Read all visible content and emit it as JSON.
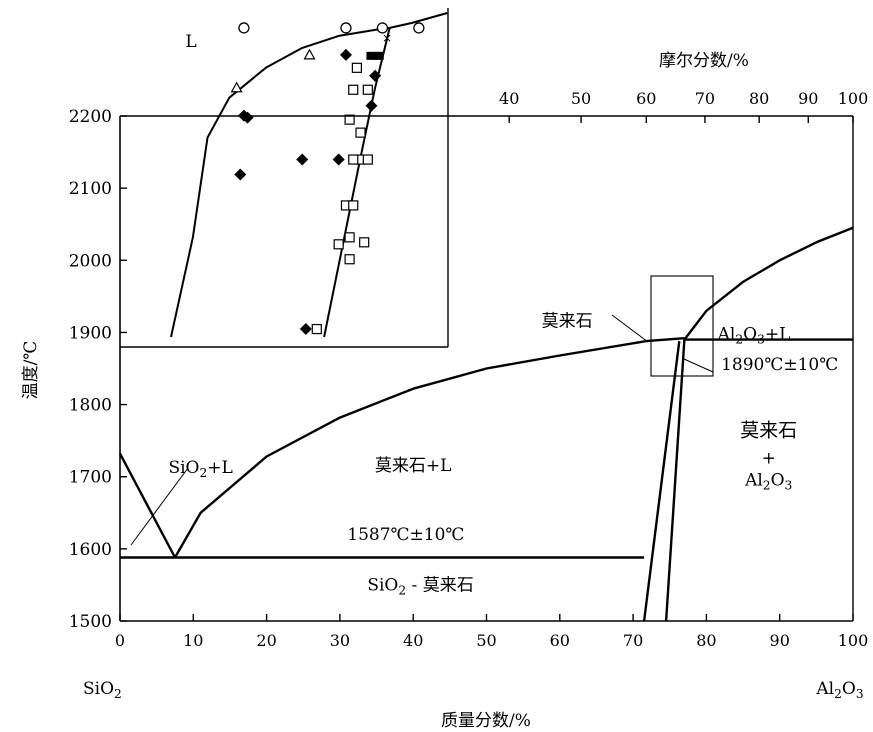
{
  "chart_data": {
    "type": "line",
    "title": "",
    "xlabel": "质量分数/%",
    "ylabel": "温度/℃",
    "x_secondary_label": "摩尔分数/%",
    "xlim": [
      0,
      100
    ],
    "ylim": [
      1500,
      2200
    ],
    "x_ticks": [
      "0",
      "10",
      "20",
      "30",
      "40",
      "50",
      "60",
      "70",
      "80",
      "90",
      "100"
    ],
    "y_ticks": [
      "1500",
      "1600",
      "1700",
      "1800",
      "1900",
      "2000",
      "2100",
      "2200"
    ],
    "top_ticks": [
      {
        "label": "40",
        "mass": 53.1
      },
      {
        "label": "50",
        "mass": 62.9
      },
      {
        "label": "60",
        "mass": 71.8
      },
      {
        "label": "70",
        "mass": 79.8
      },
      {
        "label": "80",
        "mass": 87.2
      },
      {
        "label": "90",
        "mass": 93.9
      },
      {
        "label": "100",
        "mass": 100
      }
    ],
    "end_labels": {
      "left_html": "SiO<sub>2</sub>",
      "right_html": "Al<sub>2</sub>O<sub>3</sub>"
    },
    "series": [
      {
        "x": [
          0,
          7.5
        ],
        "y": [
          1732,
          1588
        ]
      },
      {
        "x": [
          7.5,
          11,
          20,
          30,
          40,
          50,
          60,
          71.8
        ],
        "y": [
          1588,
          1650,
          1728,
          1782,
          1822,
          1850,
          1868,
          1888
        ]
      },
      {
        "x": [
          0,
          71.5
        ],
        "y": [
          1588,
          1588
        ]
      },
      {
        "x": [
          71.5,
          76.3
        ],
        "y": [
          1500,
          1888
        ]
      },
      {
        "x": [
          74.5,
          77
        ],
        "y": [
          1500,
          1890
        ]
      },
      {
        "x": [
          77,
          100
        ],
        "y": [
          1890,
          1890
        ]
      },
      {
        "x": [
          71.8,
          77
        ],
        "y": [
          1888,
          1892
        ]
      },
      {
        "x": [
          77,
          80,
          85,
          90,
          95,
          100
        ],
        "y": [
          1890,
          1930,
          1970,
          2000,
          2025,
          2045
        ]
      }
    ],
    "annotations": [
      {
        "html": "SiO<sub>2</sub>+L",
        "x": 11,
        "y": 1705
      },
      {
        "html": "莫来石+L",
        "x": 40,
        "y": 1708
      },
      {
        "html": "1587℃±10℃",
        "x": 39,
        "y": 1612
      },
      {
        "html": "SiO<sub>2</sub> - 莫来石",
        "x": 41,
        "y": 1542
      },
      {
        "html": "莫来石",
        "x": 61,
        "y": 1908
      },
      {
        "html": "Al<sub>2</sub>O<sub>3</sub>+L",
        "x": 86.5,
        "y": 1890
      },
      {
        "html": "1890℃±10℃",
        "x": 90,
        "y": 1848
      },
      {
        "html": "莫来石",
        "x": 88.5,
        "y": 1756
      },
      {
        "html": "+",
        "x": 88.5,
        "y": 1718
      },
      {
        "html": "Al<sub>2</sub>O<sub>3</sub>",
        "x": 88.5,
        "y": 1688
      }
    ],
    "inset": {
      "label": "L",
      "mark": "×",
      "xlim": [
        0,
        45
      ],
      "ylim": [
        1880,
        2220
      ],
      "curves": [
        {
          "x": [
            7,
            10,
            12,
            15,
            20,
            25,
            30,
            35,
            37
          ],
          "y": [
            1890,
            1990,
            2090,
            2130,
            2160,
            2180,
            2192,
            2198,
            2200
          ]
        },
        {
          "x": [
            28,
            30.5,
            33,
            35,
            37
          ],
          "y": [
            1890,
            1980,
            2070,
            2140,
            2200
          ]
        },
        {
          "x": [
            37,
            40,
            44.9
          ],
          "y": [
            2200,
            2205,
            2215
          ]
        }
      ],
      "circles": [
        [
          17,
          2200
        ],
        [
          31,
          2200
        ],
        [
          36,
          2200
        ],
        [
          41,
          2200
        ]
      ],
      "triangles": [
        [
          16,
          2140
        ],
        [
          26,
          2173
        ]
      ],
      "diamonds": [
        [
          17,
          2112
        ],
        [
          17.5,
          2110
        ],
        [
          16.5,
          2053
        ],
        [
          25,
          2068
        ],
        [
          30,
          2068
        ],
        [
          31,
          2173
        ],
        [
          34.5,
          2122
        ],
        [
          35,
          2152
        ],
        [
          25.5,
          1898
        ]
      ],
      "squares": [
        [
          27,
          1898
        ],
        [
          30,
          1983
        ],
        [
          31,
          2022
        ],
        [
          32,
          2022
        ],
        [
          33,
          2068
        ],
        [
          32,
          2068
        ],
        [
          34,
          2068
        ],
        [
          31.5,
          2108
        ],
        [
          33,
          2095
        ],
        [
          32,
          2138
        ],
        [
          34,
          2138
        ],
        [
          31.5,
          1990
        ],
        [
          31.5,
          1968
        ],
        [
          33.5,
          1985
        ],
        [
          32.5,
          2160
        ]
      ],
      "filled_squares": [
        [
          34.5,
          2172
        ],
        [
          35.5,
          2172
        ]
      ]
    }
  }
}
